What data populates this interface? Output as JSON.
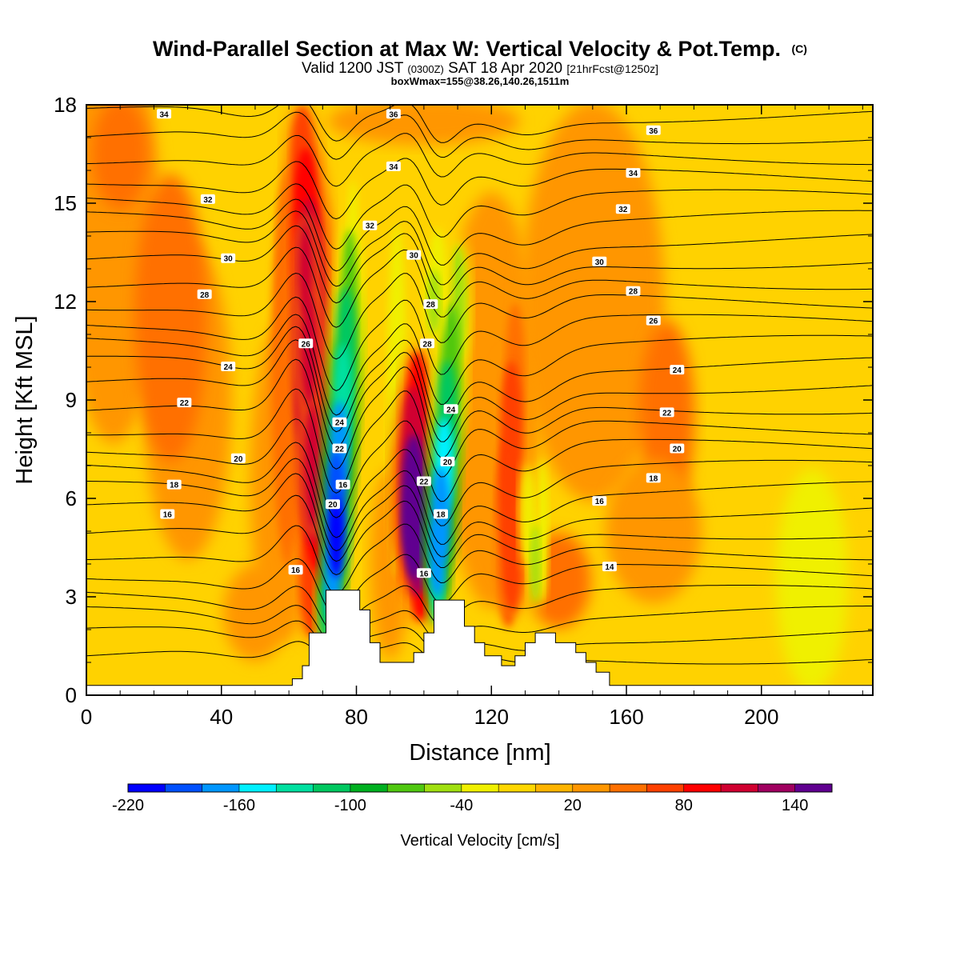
{
  "chart_data": {
    "type": "heatmap",
    "title": "Wind-Parallel Section at Max W: Vertical Velocity & Pot.Temp.",
    "title_suffix": "(C)",
    "subtitle": {
      "part1": "Valid 1200 JST",
      "part2": "(0300Z)",
      "part3": "SAT 18 Apr 2020",
      "part4": "[21hrFcst@1250z]"
    },
    "subtitle2": "boxWmax=155@38.26,140.26,1511m",
    "xlabel": "Distance [nm]",
    "ylabel": "Height [Kft MSL]",
    "xlim": [
      0,
      233
    ],
    "ylim": [
      0,
      18
    ],
    "x_ticks": [
      0,
      40,
      80,
      120,
      160,
      200
    ],
    "y_ticks": [
      0,
      3,
      6,
      9,
      12,
      15,
      18
    ],
    "colorbar": {
      "label": "Vertical Velocity [cm/s]",
      "tick_labels": [
        "-220",
        "-160",
        "-100",
        "-40",
        "20",
        "80",
        "140"
      ],
      "tick_values": [
        -220,
        -160,
        -100,
        -40,
        20,
        80,
        140
      ],
      "min": -220,
      "max": 160,
      "step": 20,
      "colors": [
        "#0000ff",
        "#0050ff",
        "#0096ff",
        "#00f0ff",
        "#00e0a0",
        "#00c860",
        "#00b020",
        "#50c810",
        "#a0e010",
        "#f0f000",
        "#ffd700",
        "#ffb400",
        "#ff9600",
        "#ff7000",
        "#ff4000",
        "#ff0000",
        "#d00030",
        "#a00060",
        "#600090"
      ]
    },
    "w_field": [
      {
        "x": 66,
        "z": 10.5,
        "value": 120
      },
      {
        "x": 74,
        "z": 5.0,
        "value": -220
      },
      {
        "x": 97,
        "z": 5.5,
        "value": 155
      },
      {
        "x": 105,
        "z": 3.5,
        "value": -160
      },
      {
        "x": 127,
        "z": 7.0,
        "value": 60
      },
      {
        "x": 17,
        "z": 12.0,
        "value": 40
      }
    ],
    "theta_levels": [
      12,
      13,
      14,
      15,
      16,
      17,
      18,
      19,
      20,
      21,
      22,
      23,
      24,
      25,
      26,
      27,
      28,
      29,
      30,
      31,
      32,
      33,
      34,
      35,
      36,
      37,
      38
    ],
    "theta_labels": [
      {
        "text": "34",
        "x": 23,
        "z": 17.7
      },
      {
        "text": "36",
        "x": 91,
        "z": 17.7
      },
      {
        "text": "36",
        "x": 168,
        "z": 17.2
      },
      {
        "text": "34",
        "x": 91,
        "z": 16.1
      },
      {
        "text": "34",
        "x": 162,
        "z": 15.9
      },
      {
        "text": "32",
        "x": 36,
        "z": 15.1
      },
      {
        "text": "32",
        "x": 84,
        "z": 14.3
      },
      {
        "text": "32",
        "x": 159,
        "z": 14.8
      },
      {
        "text": "30",
        "x": 42,
        "z": 13.3
      },
      {
        "text": "30",
        "x": 97,
        "z": 13.4
      },
      {
        "text": "30",
        "x": 152,
        "z": 13.2
      },
      {
        "text": "28",
        "x": 35,
        "z": 12.2
      },
      {
        "text": "28",
        "x": 102,
        "z": 11.9
      },
      {
        "text": "28",
        "x": 162,
        "z": 12.3
      },
      {
        "text": "26",
        "x": 65,
        "z": 10.7
      },
      {
        "text": "28",
        "x": 101,
        "z": 10.7
      },
      {
        "text": "26",
        "x": 168,
        "z": 11.4
      },
      {
        "text": "24",
        "x": 42,
        "z": 10.0
      },
      {
        "text": "24",
        "x": 175,
        "z": 9.9
      },
      {
        "text": "22",
        "x": 29,
        "z": 8.9
      },
      {
        "text": "24",
        "x": 75,
        "z": 8.3
      },
      {
        "text": "24",
        "x": 108,
        "z": 8.7
      },
      {
        "text": "22",
        "x": 172,
        "z": 8.6
      },
      {
        "text": "22",
        "x": 75,
        "z": 7.5
      },
      {
        "text": "20",
        "x": 45,
        "z": 7.2
      },
      {
        "text": "20",
        "x": 107,
        "z": 7.1
      },
      {
        "text": "20",
        "x": 175,
        "z": 7.5
      },
      {
        "text": "18",
        "x": 26,
        "z": 6.4
      },
      {
        "text": "16",
        "x": 76,
        "z": 6.4
      },
      {
        "text": "22",
        "x": 100,
        "z": 6.5
      },
      {
        "text": "18",
        "x": 168,
        "z": 6.6
      },
      {
        "text": "20",
        "x": 73,
        "z": 5.8
      },
      {
        "text": "16",
        "x": 152,
        "z": 5.9
      },
      {
        "text": "16",
        "x": 24,
        "z": 5.5
      },
      {
        "text": "18",
        "x": 105,
        "z": 5.5
      },
      {
        "text": "16",
        "x": 62,
        "z": 3.8
      },
      {
        "text": "16",
        "x": 100,
        "z": 3.7
      },
      {
        "text": "14",
        "x": 155,
        "z": 3.9
      }
    ],
    "terrain": [
      [
        0,
        0.3
      ],
      [
        61,
        0.3
      ],
      [
        61,
        0.5
      ],
      [
        64,
        0.5
      ],
      [
        64,
        0.9
      ],
      [
        66,
        0.9
      ],
      [
        66,
        1.9
      ],
      [
        71,
        1.9
      ],
      [
        71,
        3.2
      ],
      [
        81,
        3.2
      ],
      [
        81,
        2.6
      ],
      [
        84,
        2.6
      ],
      [
        84,
        1.6
      ],
      [
        87,
        1.6
      ],
      [
        87,
        1.0
      ],
      [
        97,
        1.0
      ],
      [
        97,
        1.3
      ],
      [
        100,
        1.3
      ],
      [
        100,
        1.9
      ],
      [
        103,
        1.9
      ],
      [
        103,
        2.9
      ],
      [
        112,
        2.9
      ],
      [
        112,
        2.1
      ],
      [
        115,
        2.1
      ],
      [
        115,
        1.6
      ],
      [
        118,
        1.6
      ],
      [
        118,
        1.2
      ],
      [
        123,
        1.2
      ],
      [
        123,
        0.9
      ],
      [
        127,
        0.9
      ],
      [
        127,
        1.2
      ],
      [
        130,
        1.2
      ],
      [
        130,
        1.6
      ],
      [
        133,
        1.6
      ],
      [
        133,
        1.9
      ],
      [
        139,
        1.9
      ],
      [
        139,
        1.6
      ],
      [
        145,
        1.6
      ],
      [
        145,
        1.3
      ],
      [
        148,
        1.3
      ],
      [
        148,
        1.0
      ],
      [
        151,
        1.0
      ],
      [
        151,
        0.7
      ],
      [
        155,
        0.7
      ],
      [
        155,
        0.3
      ],
      [
        233,
        0.3
      ]
    ]
  }
}
